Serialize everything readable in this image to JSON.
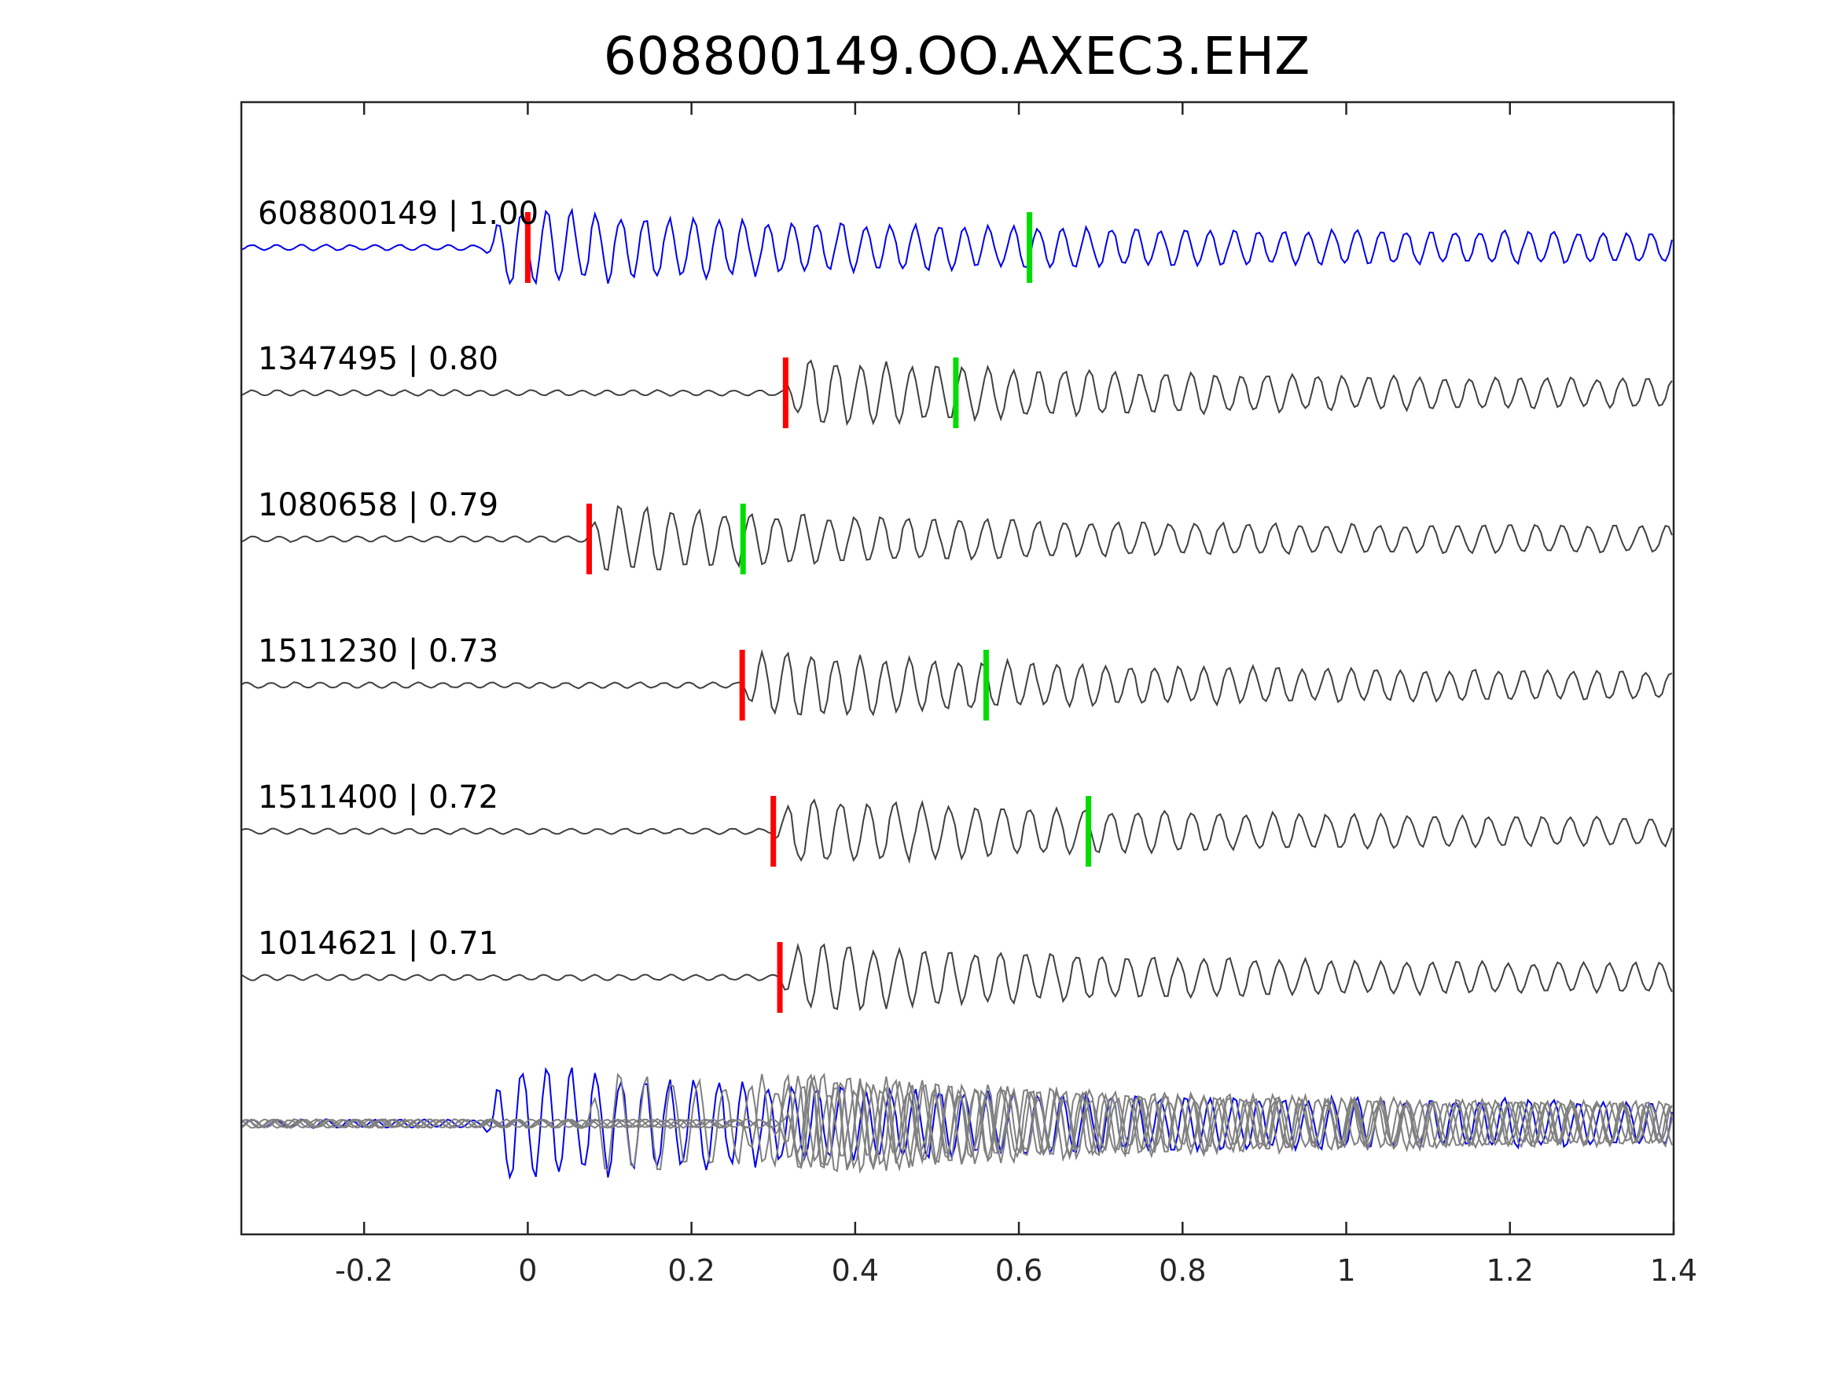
{
  "chart_data": {
    "type": "line",
    "title": "608800149.OO.AXEC3.EHZ",
    "xlabel": "",
    "ylabel": "",
    "xlim": [
      -0.35,
      1.4
    ],
    "x_ticks": [
      -0.2,
      0,
      0.2,
      0.4,
      0.6,
      0.8,
      1,
      1.2,
      1.4
    ],
    "x_tick_labels": [
      "-0.2",
      "0",
      "0.2",
      "0.4",
      "0.6",
      "0.8",
      "1",
      "1.2",
      "1.4"
    ],
    "grid": false,
    "template_color": "#0000ee",
    "match_color": "#404040",
    "overlay_match_color": "#808080",
    "p_pick_color": "#ff0000",
    "s_pick_color": "#00dd00",
    "series": [
      {
        "name": "608800149",
        "label": "608800149 | 1.00",
        "cc": 1.0,
        "p_pick": 0.0,
        "s_pick": 0.613,
        "onset": -0.05,
        "amp": 1.0,
        "period": 0.03,
        "seed": 3
      },
      {
        "name": "1347495",
        "label": "1347495 | 0.80",
        "cc": 0.8,
        "p_pick": 0.315,
        "s_pick": 0.523,
        "onset": 0.315,
        "amp": 0.85,
        "period": 0.031,
        "seed": 7
      },
      {
        "name": "1080658",
        "label": "1080658 | 0.79",
        "cc": 0.79,
        "p_pick": 0.075,
        "s_pick": 0.263,
        "onset": 0.07,
        "amp": 0.85,
        "period": 0.032,
        "seed": 11
      },
      {
        "name": "1511230",
        "label": "1511230 | 0.73",
        "cc": 0.73,
        "p_pick": 0.262,
        "s_pick": 0.56,
        "onset": 0.262,
        "amp": 0.85,
        "period": 0.03,
        "seed": 17
      },
      {
        "name": "1511400",
        "label": "1511400 | 0.72",
        "cc": 0.72,
        "p_pick": 0.3,
        "s_pick": 0.685,
        "onset": 0.3,
        "amp": 0.85,
        "period": 0.033,
        "seed": 23
      },
      {
        "name": "1014621",
        "label": "1014621 | 0.71",
        "cc": 0.71,
        "p_pick": 0.308,
        "s_pick": null,
        "onset": 0.308,
        "amp": 0.85,
        "period": 0.031,
        "seed": 29
      }
    ]
  }
}
